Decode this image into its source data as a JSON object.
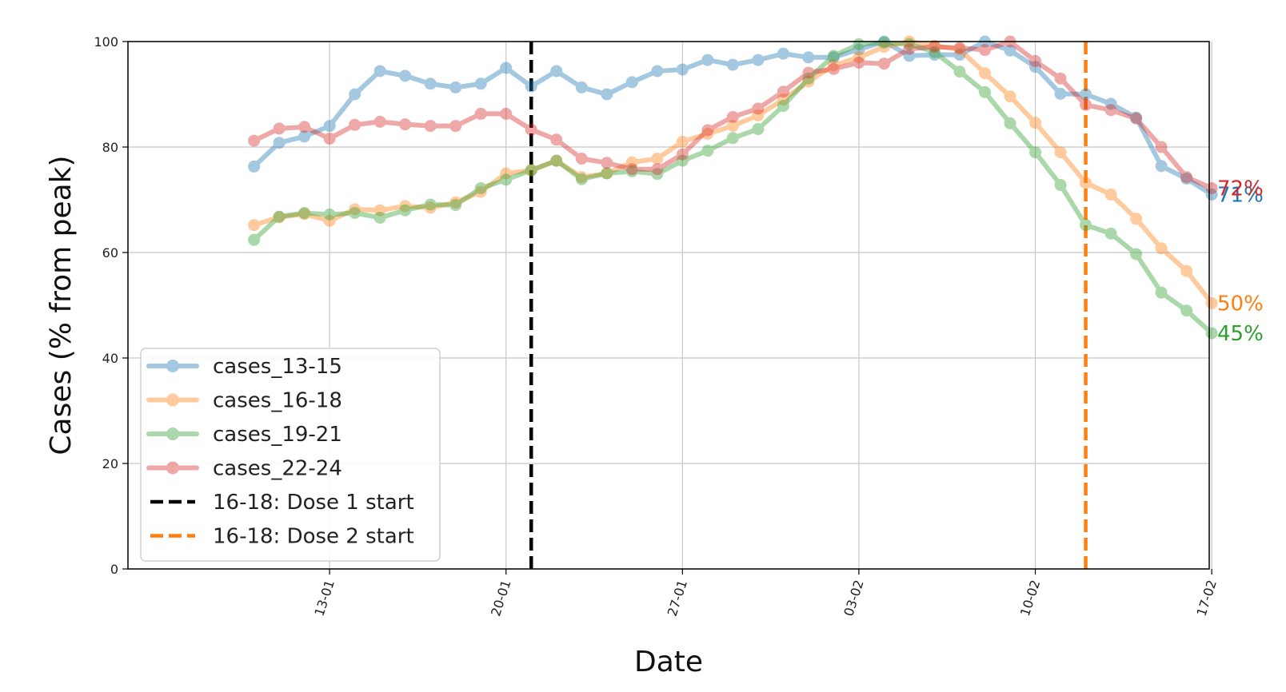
{
  "chart_data": {
    "type": "line",
    "title": "",
    "xlabel": "Date",
    "ylabel": "Cases (% from peak)",
    "ylim": [
      0,
      100
    ],
    "yticks": [
      "0",
      "20",
      "40",
      "60",
      "80",
      "100"
    ],
    "xlim_days": [
      5,
      47.9
    ],
    "xticks": [
      {
        "label": "13-01",
        "day": 13
      },
      {
        "label": "20-01",
        "day": 20
      },
      {
        "label": "27-01",
        "day": 27
      },
      {
        "label": "03-02",
        "day": 34
      },
      {
        "label": "10-02",
        "day": 41
      },
      {
        "label": "17-02",
        "day": 48
      }
    ],
    "x_dates": [
      "10-01",
      "11-01",
      "12-01",
      "13-01",
      "14-01",
      "15-01",
      "16-01",
      "17-01",
      "18-01",
      "19-01",
      "20-01",
      "21-01",
      "22-01",
      "23-01",
      "24-01",
      "25-01",
      "26-01",
      "27-01",
      "28-01",
      "29-01",
      "30-01",
      "31-01",
      "01-02",
      "02-02",
      "03-02",
      "04-02",
      "05-02",
      "06-02",
      "07-02",
      "08-02",
      "09-02",
      "10-02",
      "11-02",
      "12-02",
      "13-02",
      "14-02",
      "15-02",
      "16-02",
      "17-02"
    ],
    "x_days": [
      10,
      11,
      12,
      13,
      14,
      15,
      16,
      17,
      18,
      19,
      20,
      21,
      22,
      23,
      24,
      25,
      26,
      27,
      28,
      29,
      30,
      31,
      32,
      33,
      34,
      35,
      36,
      37,
      38,
      39,
      40,
      41,
      42,
      43,
      44,
      45,
      46,
      47,
      48
    ],
    "grid": true,
    "legend_position": "lower-left",
    "series": [
      {
        "name": "cases_13-15",
        "color": "#1f77b4",
        "end_label": "71%",
        "values": [
          76.3,
          80.8,
          82.0,
          84.0,
          90.0,
          94.4,
          93.5,
          92.0,
          91.3,
          92.0,
          95.0,
          91.5,
          94.4,
          91.3,
          90.0,
          92.3,
          94.4,
          94.7,
          96.5,
          95.6,
          96.5,
          97.7,
          97.0,
          97.0,
          98.5,
          100.0,
          97.3,
          97.5,
          97.5,
          100.0,
          98.3,
          95.2,
          90.1,
          90.0,
          88.2,
          85.6,
          76.4,
          74.0,
          71.0
        ]
      },
      {
        "name": "cases_16-18",
        "color": "#ff7f0e",
        "end_label": "50%",
        "values": [
          65.2,
          66.7,
          67.3,
          66.0,
          68.2,
          68.0,
          68.8,
          68.5,
          69.5,
          71.5,
          75.0,
          75.6,
          77.4,
          74.3,
          75.0,
          77.1,
          77.8,
          81.0,
          82.5,
          84.0,
          86.0,
          89.0,
          92.4,
          95.5,
          97.0,
          99.0,
          100.0,
          99.2,
          98.5,
          94.0,
          89.6,
          84.6,
          79.0,
          73.2,
          71.0,
          66.4,
          60.8,
          56.5,
          50.4
        ]
      },
      {
        "name": "cases_19-21",
        "color": "#2ca02c",
        "end_label": "45%",
        "values": [
          62.4,
          66.8,
          67.5,
          67.2,
          67.5,
          66.6,
          68.0,
          69.1,
          69.0,
          72.2,
          73.8,
          75.6,
          77.4,
          73.9,
          75.0,
          75.4,
          74.9,
          77.4,
          79.3,
          81.7,
          83.4,
          87.8,
          93.0,
          97.3,
          99.5,
          99.8,
          99.5,
          98.0,
          94.3,
          90.4,
          84.5,
          79.0,
          72.8,
          65.2,
          63.6,
          59.7,
          52.4,
          49.0,
          44.7
        ]
      },
      {
        "name": "cases_22-24",
        "color": "#d62728",
        "end_label": "72%",
        "values": [
          81.2,
          83.5,
          83.8,
          81.6,
          84.2,
          84.8,
          84.3,
          84.0,
          84.0,
          86.3,
          86.3,
          83.3,
          81.4,
          77.8,
          77.0,
          75.8,
          75.8,
          78.6,
          83.2,
          85.7,
          87.3,
          90.5,
          94.1,
          94.8,
          96.0,
          95.8,
          98.6,
          99.0,
          98.8,
          98.4,
          100.0,
          96.3,
          93.0,
          88.0,
          87.0,
          85.4,
          80.0,
          74.3,
          72.2
        ]
      }
    ],
    "vlines": [
      {
        "name": "16-18: Dose 1 start",
        "color": "#000000",
        "day": 21
      },
      {
        "name": "16-18: Dose 2 start",
        "color": "#ff7f0e",
        "day": 43
      }
    ]
  }
}
